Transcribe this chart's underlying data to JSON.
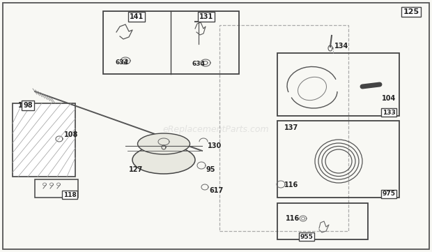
{
  "bg_color": "#f8f8f4",
  "line_color": "#444444",
  "text_color": "#222222",
  "light_line": "#999999",
  "dashed_line": "#aaaaaa",
  "fig_w": 6.2,
  "fig_h": 3.61,
  "dpi": 100,
  "watermark": "eReplacementParts.com",
  "watermark_alpha": 0.35,
  "watermark_color": "#bbbbbb"
}
